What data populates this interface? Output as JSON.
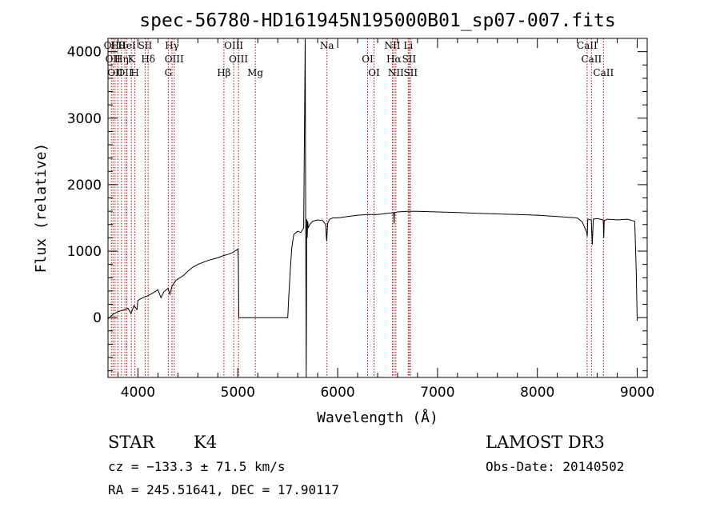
{
  "chart_data": {
    "type": "line",
    "title": "spec-56780-HD161945N195000B01_sp07-007.fits",
    "xlabel": "Wavelength (Å)",
    "ylabel": "Flux (relative)",
    "xlim": [
      3700,
      9100
    ],
    "ylim": [
      -900,
      4200
    ],
    "xticks": [
      4000,
      5000,
      6000,
      7000,
      8000,
      9000
    ],
    "yticks": [
      0,
      1000,
      2000,
      3000,
      4000
    ],
    "grid": false,
    "series": [
      {
        "x": [
          3700,
          3750,
          3800,
          3850,
          3900,
          3930,
          3960,
          3990,
          4000,
          4050,
          4100,
          4150,
          4200,
          4230,
          4260,
          4300,
          4320,
          4340,
          4380,
          4420,
          4460,
          4500,
          4550,
          4600,
          4650,
          4700,
          4750,
          4800,
          4850,
          4900,
          4950,
          5000,
          5005,
          5010,
          5500,
          5510,
          5525,
          5540,
          5560,
          5600,
          5630,
          5660,
          5675,
          5680,
          5685,
          5690,
          5695,
          5700,
          5705,
          5720,
          5750,
          5800,
          5850,
          5880,
          5890,
          5900,
          5920,
          5950,
          6000,
          6100,
          6200,
          6300,
          6400,
          6500,
          6560,
          6565,
          6570,
          6600,
          6700,
          6800,
          7000,
          7200,
          7400,
          7600,
          7800,
          8000,
          8200,
          8400,
          8450,
          8495,
          8500,
          8505,
          8540,
          8545,
          8550,
          8560,
          8600,
          8660,
          8665,
          8670,
          8700,
          8800,
          8900,
          8950,
          8975,
          8990,
          9000
        ],
        "y": [
          -20,
          50,
          90,
          110,
          140,
          60,
          180,
          120,
          260,
          300,
          330,
          370,
          420,
          300,
          390,
          440,
          350,
          470,
          560,
          600,
          640,
          700,
          760,
          800,
          830,
          860,
          880,
          900,
          930,
          950,
          980,
          1030,
          850,
          0,
          0,
          300,
          700,
          1050,
          1250,
          1300,
          1280,
          1350,
          4200,
          1500,
          -900,
          1480,
          1200,
          1450,
          1350,
          1400,
          1450,
          1470,
          1460,
          1400,
          1150,
          1420,
          1480,
          1500,
          1500,
          1520,
          1540,
          1550,
          1550,
          1570,
          1580,
          1420,
          1580,
          1590,
          1600,
          1600,
          1590,
          1580,
          1570,
          1560,
          1550,
          1540,
          1520,
          1500,
          1440,
          1280,
          1220,
          1480,
          1470,
          1300,
          1100,
          1480,
          1490,
          1470,
          1200,
          1460,
          1480,
          1470,
          1480,
          1460,
          1450,
          700,
          -50
        ]
      }
    ],
    "lines": [
      {
        "x": 3734,
        "label": "OII"
      },
      {
        "x": 3750,
        "label": "OII"
      },
      {
        "x": 3771,
        "label": "OII"
      },
      {
        "x": 3798,
        "label": "Hθ"
      },
      {
        "x": 3835,
        "label": "Hη"
      },
      {
        "x": 3869,
        "label": "OII"
      },
      {
        "x": 3889,
        "label": "HeI"
      },
      {
        "x": 3934,
        "label": "K"
      },
      {
        "x": 3969,
        "label": "H"
      },
      {
        "x": 4072,
        "label": "SII"
      },
      {
        "x": 4102,
        "label": "Hδ"
      },
      {
        "x": 4304,
        "label": "G"
      },
      {
        "x": 4341,
        "label": "Hγ"
      },
      {
        "x": 4363,
        "label": "OIII"
      },
      {
        "x": 4861,
        "label": "Hβ"
      },
      {
        "x": 4959,
        "label": "OIII"
      },
      {
        "x": 5007,
        "label": "OIII"
      },
      {
        "x": 5175,
        "label": "Mg"
      },
      {
        "x": 5893,
        "label": "Na"
      },
      {
        "x": 6300,
        "label": "OI"
      },
      {
        "x": 6364,
        "label": "OI"
      },
      {
        "x": 6548,
        "label": "NII"
      },
      {
        "x": 6563,
        "label": "Hα"
      },
      {
        "x": 6583,
        "label": "NII"
      },
      {
        "x": 6707,
        "label": "Li"
      },
      {
        "x": 6716,
        "label": "SII"
      },
      {
        "x": 6731,
        "label": "SII"
      },
      {
        "x": 8498,
        "label": "CaII"
      },
      {
        "x": 8542,
        "label": "CaII"
      },
      {
        "x": 8662,
        "label": "CaII"
      }
    ]
  },
  "info": {
    "class_label": "STAR",
    "subclass": "K4",
    "survey": "LAMOST DR3",
    "cz": "cz = −133.3 ± 71.5 km/s",
    "obs_date": "Obs-Date: 20140502",
    "coords": "RA = 245.51641, DEC =  17.90117"
  }
}
